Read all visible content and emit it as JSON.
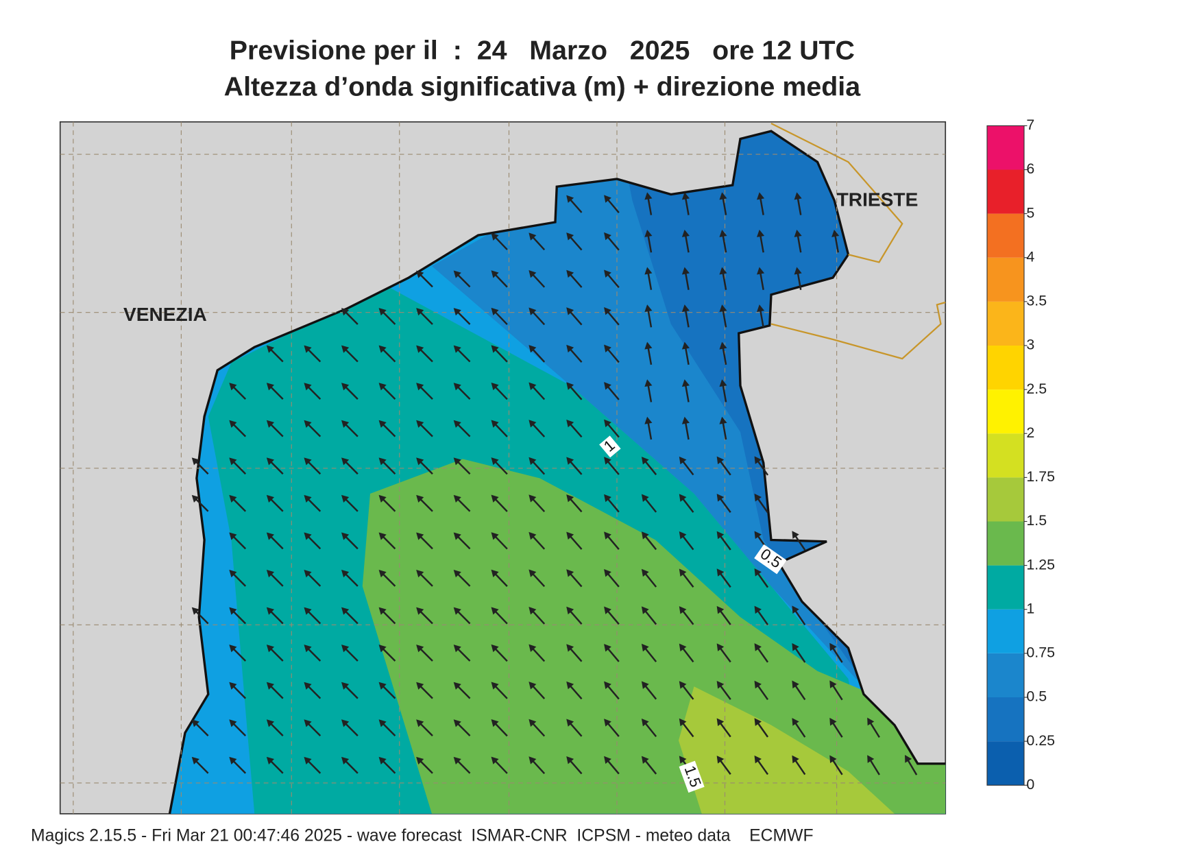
{
  "header": {
    "title_line1": "Previsione per il  :  24   Marzo   2025   ore 12 UTC",
    "title_line2": "Altezza d’onda significativa (m) + direzione media"
  },
  "map": {
    "places": [
      "VENEZIA",
      "TRIESTE"
    ],
    "contour_labels": [
      "1",
      "0.5",
      "1.5"
    ]
  },
  "colorbar": {
    "ticks": [
      0,
      0.25,
      0.5,
      0.75,
      1,
      1.25,
      1.5,
      1.75,
      2,
      2.5,
      3,
      3.5,
      4,
      5,
      6,
      7
    ],
    "colors": [
      "#0b5fae",
      "#1673c0",
      "#1b86cc",
      "#0fa0e2",
      "#00aaa2",
      "#6ab94d",
      "#a6c93b",
      "#d4e021",
      "#fff200",
      "#ffd400",
      "#fbb51a",
      "#f7941e",
      "#f37021",
      "#e8202a",
      "#ec1169"
    ]
  },
  "footer": "Magics 2.15.5 - Fri Mar 21 00:47:46 2025 - wave forecast  ISMAR-CNR  ICPSM - meteo data    ECMWF"
}
